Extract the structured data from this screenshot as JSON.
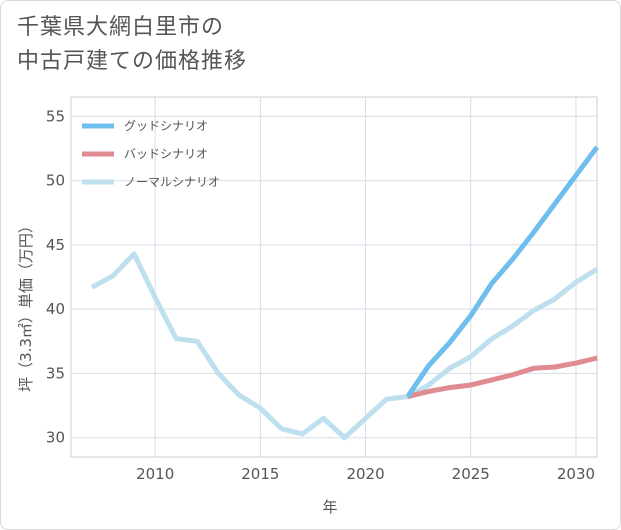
{
  "title": {
    "line1": "千葉県大網白里市の",
    "line2": "中古戸建ての価格推移"
  },
  "chart_data": {
    "type": "line",
    "title": "千葉県大網白里市の中古戸建ての価格推移",
    "xlabel": "年",
    "ylabel": "坪（3.3㎡）単価（万円）",
    "xlim": [
      2006,
      2031
    ],
    "ylim": [
      28.5,
      56.5
    ],
    "xticks": [
      2010,
      2015,
      2020,
      2025,
      2030
    ],
    "yticks": [
      30,
      35,
      40,
      45,
      50,
      55
    ],
    "grid": true,
    "legend_position": "top-left",
    "series": [
      {
        "name": "グッドシナリオ",
        "color": "#6fbeee",
        "x": [
          2022,
          2023,
          2024,
          2025,
          2026,
          2027,
          2028,
          2029,
          2030,
          2031
        ],
        "y": [
          33.2,
          35.6,
          37.4,
          39.5,
          42.0,
          43.9,
          46.0,
          48.2,
          50.4,
          52.6
        ]
      },
      {
        "name": "バッドシナリオ",
        "color": "#e08a92",
        "x": [
          2022,
          2023,
          2024,
          2025,
          2026,
          2027,
          2028,
          2029,
          2030,
          2031
        ],
        "y": [
          33.2,
          33.6,
          33.9,
          34.1,
          34.5,
          34.9,
          35.4,
          35.5,
          35.8,
          36.2
        ]
      },
      {
        "name": "ノーマルシナリオ",
        "color": "#bddfee",
        "x": [
          2007,
          2008,
          2009,
          2010,
          2011,
          2012,
          2013,
          2014,
          2015,
          2016,
          2017,
          2018,
          2019,
          2020,
          2021,
          2022,
          2023,
          2024,
          2025,
          2026,
          2027,
          2028,
          2029,
          2030,
          2031
        ],
        "y": [
          41.7,
          42.6,
          44.3,
          40.9,
          37.7,
          37.5,
          35.0,
          33.3,
          32.3,
          30.7,
          30.3,
          31.5,
          30.0,
          31.5,
          33.0,
          33.2,
          34.1,
          35.4,
          36.3,
          37.7,
          38.7,
          39.9,
          40.8,
          42.1,
          43.1
        ]
      }
    ]
  }
}
